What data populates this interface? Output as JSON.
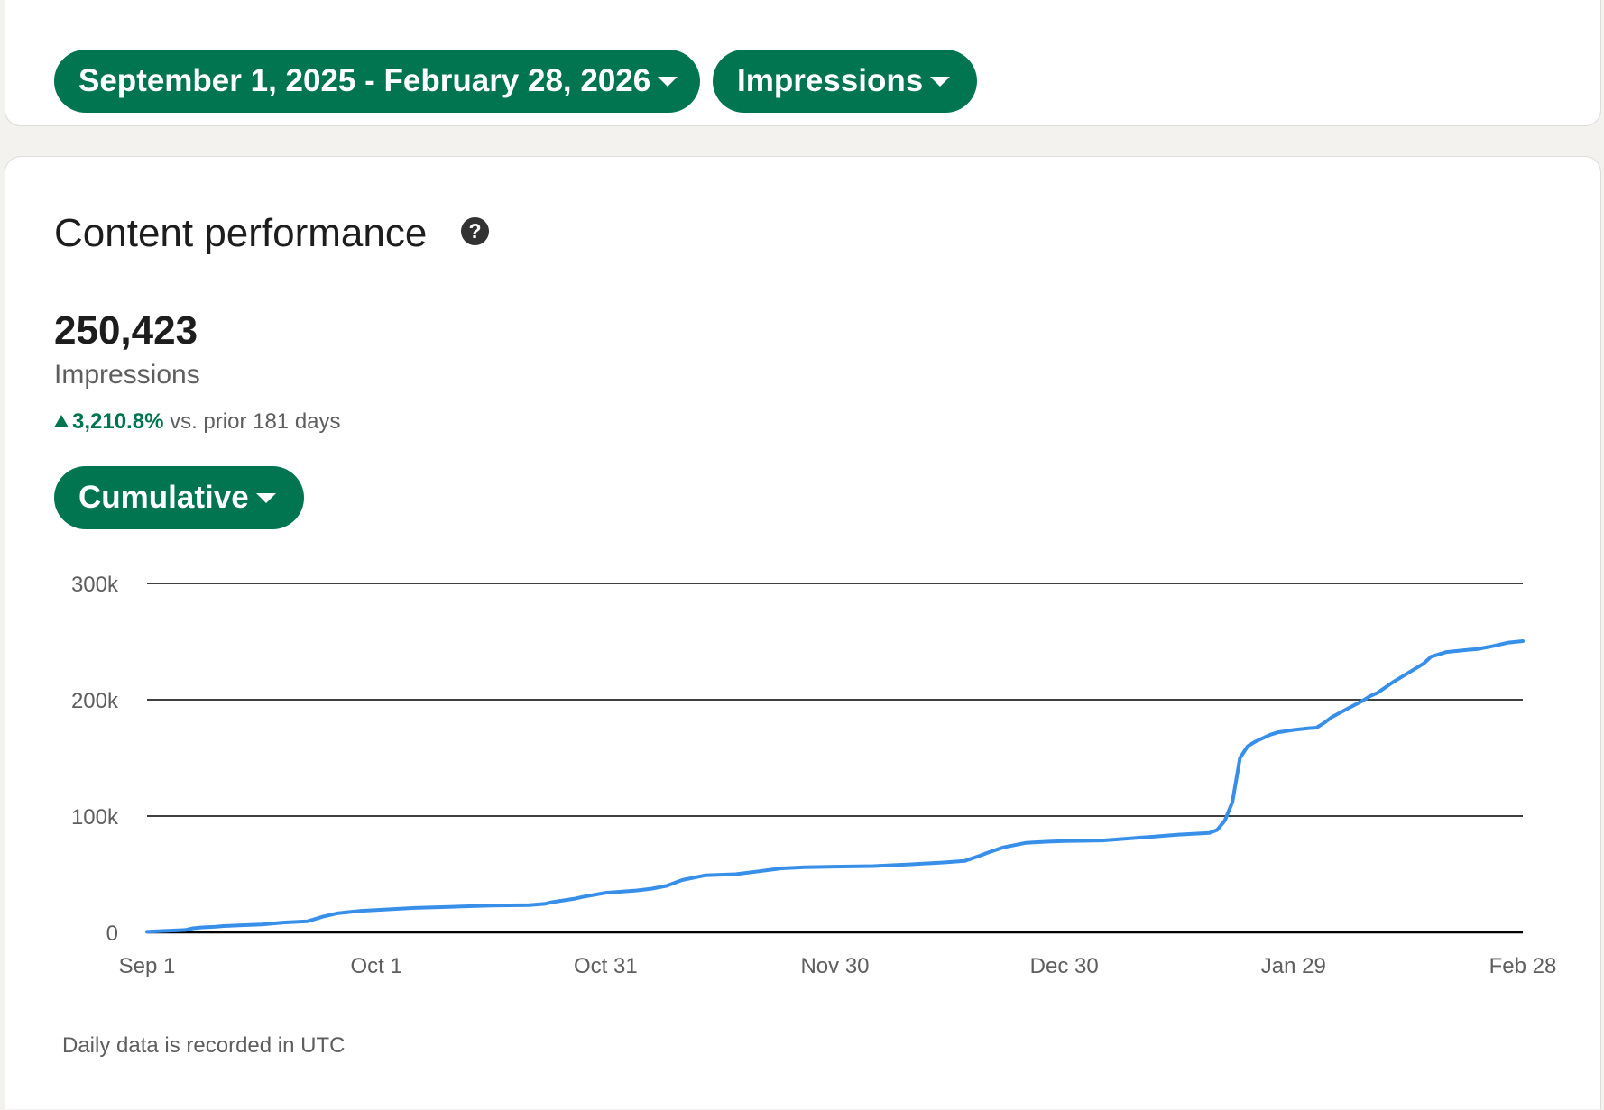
{
  "filters": {
    "date_range": "September 1, 2025 - February 28, 2026",
    "metric": "Impressions"
  },
  "performance": {
    "title": "Content performance",
    "total": "250,423",
    "total_label": "Impressions",
    "change_value": "3,210.8%",
    "change_text": "vs. prior 181 days",
    "view_mode": "Cumulative",
    "footnote": "Daily data is recorded in UTC"
  },
  "colors": {
    "accent": "#01754f",
    "line": "#378fe9",
    "grid": "#000000"
  },
  "chart_data": {
    "type": "line",
    "title": "",
    "xlabel": "",
    "ylabel": "",
    "ylim": [
      0,
      300000
    ],
    "yticks": [
      0,
      100000,
      200000,
      300000
    ],
    "ytick_labels": [
      "0",
      "100k",
      "200k",
      "300k"
    ],
    "xtick_labels": [
      "Sep 1",
      "Oct 1",
      "Oct 31",
      "Nov 30",
      "Dec 30",
      "Jan 29",
      "Feb 28"
    ],
    "xtick_positions": [
      0,
      30,
      60,
      90,
      120,
      150,
      180
    ],
    "grid": "horizontal",
    "series": [
      {
        "x": [
          0,
          2,
          5,
          6,
          7,
          9,
          10,
          12,
          15,
          18,
          21,
          22,
          23,
          25,
          28,
          31,
          35,
          40,
          45,
          50,
          52,
          53,
          56,
          57,
          60,
          64,
          66,
          68,
          70,
          73,
          75,
          77,
          80,
          83,
          86,
          90,
          95,
          100,
          104,
          107,
          109,
          110,
          112,
          115,
          118,
          120,
          125,
          130,
          135,
          139,
          140,
          141,
          142,
          143,
          144,
          145,
          146,
          147,
          148,
          150,
          152,
          153,
          154,
          155,
          157,
          159,
          160,
          161,
          163,
          165,
          167,
          168,
          170,
          173,
          174,
          176,
          178,
          180
        ],
        "y": [
          500,
          1200,
          2000,
          3500,
          4200,
          4800,
          5400,
          6000,
          6800,
          8500,
          9500,
          11500,
          13500,
          16500,
          18500,
          19500,
          21000,
          22000,
          23000,
          23500,
          24500,
          26000,
          29000,
          30500,
          34000,
          36000,
          37500,
          40000,
          45000,
          49000,
          49500,
          50000,
          52500,
          55000,
          56000,
          56500,
          57000,
          58500,
          60000,
          61500,
          66000,
          68500,
          73000,
          77000,
          78000,
          78500,
          79000,
          81500,
          84000,
          85500,
          88000,
          96000,
          112000,
          150000,
          160000,
          164000,
          167000,
          170000,
          172000,
          174000,
          175500,
          176000,
          180000,
          185000,
          192000,
          199000,
          203000,
          206000,
          215000,
          223000,
          231000,
          237000,
          241000,
          243000,
          243500,
          246000,
          249000,
          250423
        ]
      }
    ]
  }
}
